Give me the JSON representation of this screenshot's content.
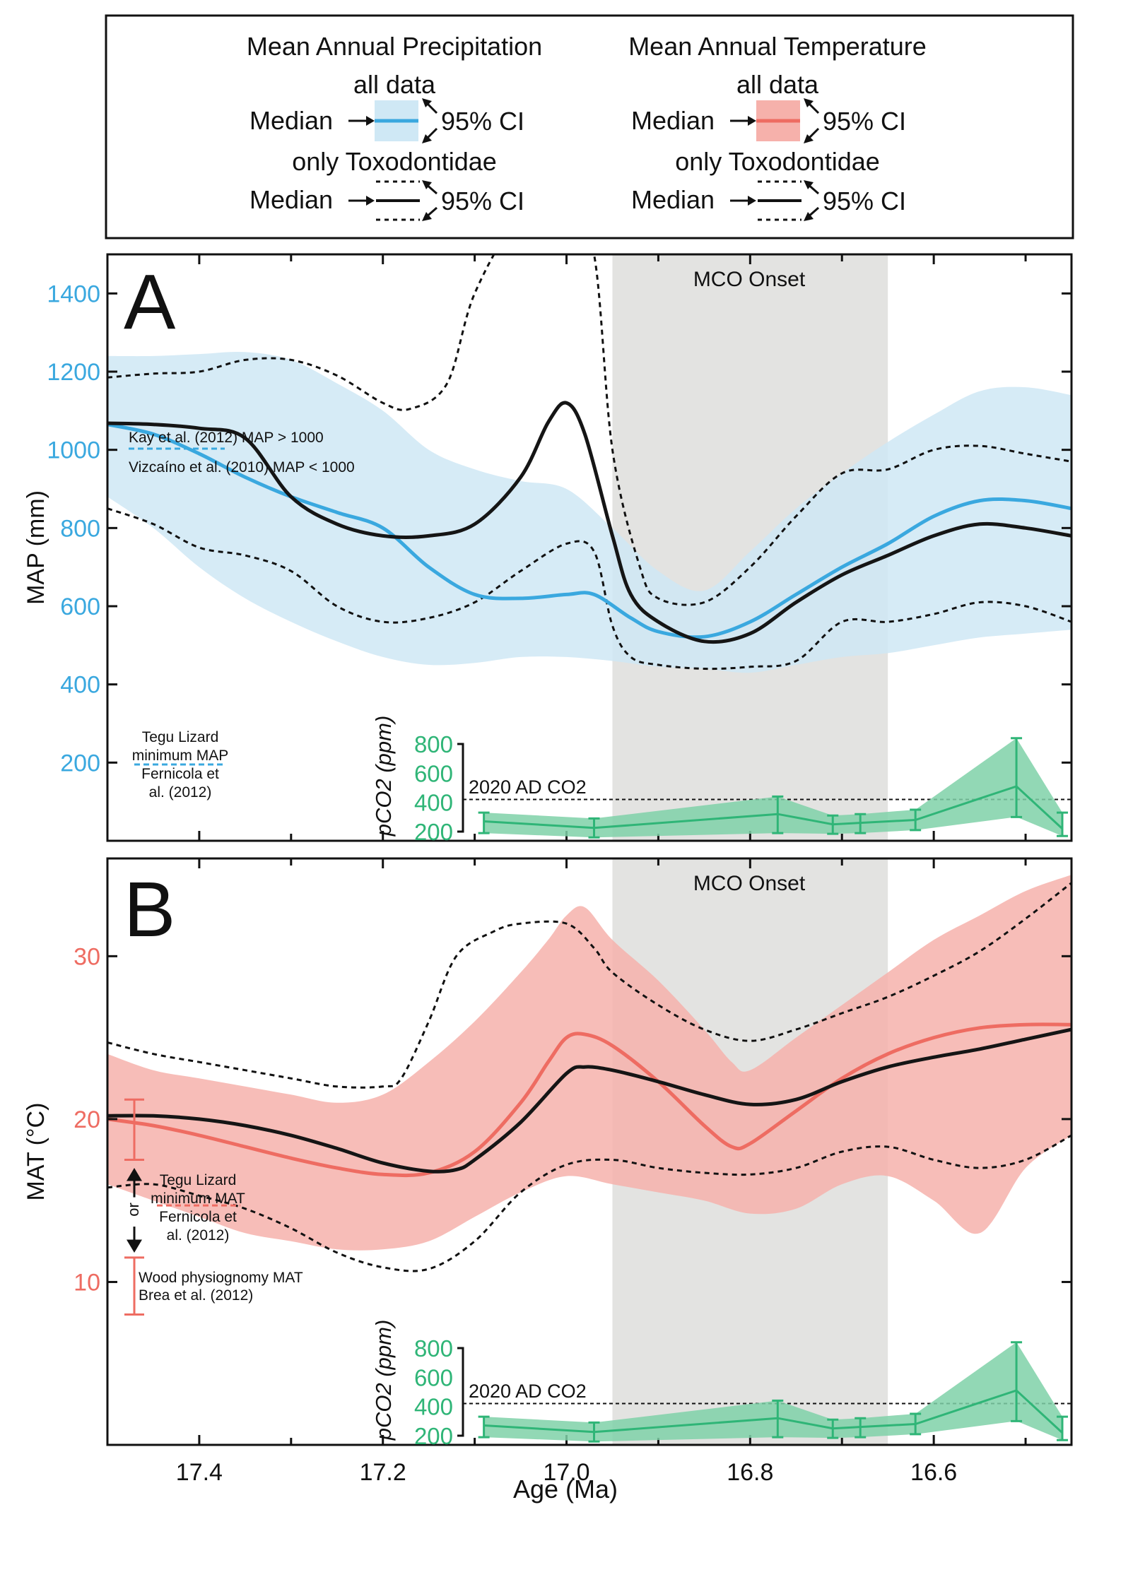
{
  "legend": {
    "map_title": "Mean Annual Precipitation",
    "mat_title": "Mean Annual Temperature",
    "all_data": "all data",
    "only_toxo": "only Toxodontidae",
    "median": "Median",
    "ci": "95% CI"
  },
  "colors": {
    "map": "#3aa8df",
    "map_band": "#cfe8f5",
    "mat": "#ee6c62",
    "mat_band": "#f6b1ab",
    "co2": "#2fb577",
    "co2_band": "#7fd1a8",
    "mco": "#e3e3e1"
  },
  "chart_data": [
    {
      "type": "line",
      "panel_label": "A",
      "ylabel": "MAP (mm)",
      "xlim": [
        17.5,
        16.45
      ],
      "ylim": [
        0,
        1500
      ],
      "y_ticks": [
        200,
        400,
        600,
        800,
        1000,
        1200,
        1400
      ],
      "shaded_region": {
        "label": "MCO Onset",
        "from": 16.95,
        "to": 16.65
      },
      "series": [
        {
          "role": "all data median",
          "x": [
            17.5,
            17.45,
            17.4,
            17.35,
            17.3,
            17.25,
            17.2,
            17.15,
            17.1,
            17.05,
            17.0,
            16.97,
            16.93,
            16.9,
            16.85,
            16.8,
            16.75,
            16.7,
            16.65,
            16.6,
            16.55,
            16.5,
            16.45
          ],
          "y": [
            1065,
            1040,
            990,
            930,
            880,
            840,
            800,
            700,
            630,
            620,
            630,
            630,
            570,
            535,
            522,
            560,
            630,
            700,
            760,
            830,
            870,
            870,
            850
          ]
        },
        {
          "role": "all data 95% CI upper",
          "x": [
            17.5,
            17.45,
            17.4,
            17.35,
            17.3,
            17.25,
            17.2,
            17.15,
            17.1,
            17.05,
            17.0,
            16.95,
            16.9,
            16.85,
            16.8,
            16.75,
            16.7,
            16.65,
            16.6,
            16.55,
            16.5,
            16.45
          ],
          "y": [
            1240,
            1240,
            1245,
            1250,
            1230,
            1170,
            1100,
            1000,
            950,
            920,
            900,
            800,
            690,
            640,
            740,
            850,
            940,
            1020,
            1090,
            1150,
            1160,
            1140
          ]
        },
        {
          "role": "all data 95% CI lower",
          "x": [
            17.5,
            17.45,
            17.4,
            17.35,
            17.3,
            17.25,
            17.2,
            17.15,
            17.1,
            17.05,
            17.0,
            16.95,
            16.9,
            16.85,
            16.8,
            16.75,
            16.7,
            16.65,
            16.6,
            16.55,
            16.5,
            16.45
          ],
          "y": [
            880,
            800,
            700,
            620,
            560,
            510,
            470,
            450,
            455,
            470,
            470,
            460,
            445,
            440,
            430,
            450,
            470,
            480,
            500,
            520,
            530,
            540
          ]
        },
        {
          "role": "Toxodontidae median",
          "x": [
            17.5,
            17.45,
            17.4,
            17.35,
            17.3,
            17.25,
            17.2,
            17.15,
            17.1,
            17.05,
            17.02,
            17.0,
            16.98,
            16.95,
            16.93,
            16.9,
            16.85,
            16.8,
            16.75,
            16.7,
            16.65,
            16.6,
            16.55,
            16.5,
            16.45
          ],
          "y": [
            1068,
            1065,
            1055,
            1030,
            880,
            810,
            780,
            780,
            810,
            930,
            1070,
            1120,
            1040,
            780,
            630,
            560,
            510,
            530,
            610,
            680,
            730,
            780,
            810,
            800,
            780
          ]
        },
        {
          "role": "Toxodontidae 95% CI upper",
          "x": [
            17.5,
            17.45,
            17.4,
            17.35,
            17.3,
            17.25,
            17.2,
            17.17,
            17.13,
            17.1,
            17.05,
            17.0,
            16.97,
            16.95,
            16.92,
            16.9,
            16.85,
            16.8,
            16.75,
            16.7,
            16.65,
            16.6,
            16.55,
            16.5,
            16.45
          ],
          "y": [
            1185,
            1195,
            1200,
            1230,
            1230,
            1190,
            1120,
            1105,
            1170,
            1400,
            1600,
            1650,
            1500,
            1000,
            700,
            620,
            610,
            700,
            830,
            940,
            950,
            1000,
            1010,
            990,
            970
          ]
        },
        {
          "role": "Toxodontidae 95% CI lower",
          "x": [
            17.5,
            17.45,
            17.4,
            17.35,
            17.3,
            17.25,
            17.2,
            17.15,
            17.1,
            17.05,
            17.0,
            16.97,
            16.95,
            16.93,
            16.9,
            16.85,
            16.8,
            16.75,
            16.7,
            16.65,
            16.6,
            16.55,
            16.5,
            16.45
          ],
          "y": [
            850,
            810,
            750,
            730,
            690,
            600,
            560,
            570,
            610,
            690,
            760,
            740,
            550,
            470,
            450,
            440,
            445,
            460,
            560,
            560,
            580,
            610,
            600,
            560
          ]
        }
      ],
      "annotations": [
        {
          "value": 1000,
          "text_top": "Kay et al. (2012) MAP > 1000",
          "text_bottom": "Vizcaíno  et al. (2010) MAP < 1000"
        },
        {
          "value": 200,
          "text_lines": [
            "Tegu Lizard",
            "minimum MAP",
            "Fernicola et",
            "al. (2012)"
          ]
        }
      ],
      "co2_inset": {
        "ylabel": "pCO2 (ppm)",
        "y_ticks": [
          200,
          400,
          600,
          800
        ],
        "reference": {
          "value": 420,
          "label": "2020 AD CO2"
        },
        "x": [
          17.09,
          16.97,
          16.77,
          16.71,
          16.68,
          16.62,
          16.51,
          16.46
        ],
        "median": [
          270,
          225,
          320,
          250,
          260,
          280,
          510,
          220
        ],
        "ci_upper": [
          330,
          290,
          440,
          310,
          320,
          350,
          840,
          330
        ],
        "ci_lower": [
          190,
          160,
          190,
          185,
          190,
          210,
          300,
          170
        ]
      }
    },
    {
      "type": "line",
      "panel_label": "B",
      "ylabel": "MAT (°C)",
      "xlabel": "Age (Ma)",
      "xlim": [
        17.5,
        16.45
      ],
      "ylim": [
        0,
        36
      ],
      "x_ticks": [
        17.4,
        17.2,
        17.0,
        16.8,
        16.6
      ],
      "y_ticks": [
        10,
        20,
        30
      ],
      "shaded_region": {
        "label": "MCO Onset",
        "from": 16.95,
        "to": 16.65
      },
      "series": [
        {
          "role": "all data median",
          "x": [
            17.5,
            17.45,
            17.4,
            17.35,
            17.3,
            17.25,
            17.2,
            17.15,
            17.1,
            17.05,
            17.02,
            17.0,
            16.98,
            16.95,
            16.9,
            16.85,
            16.82,
            16.8,
            16.75,
            16.7,
            16.65,
            16.6,
            16.55,
            16.5,
            16.45
          ],
          "y": [
            20.0,
            19.6,
            19.0,
            18.3,
            17.6,
            17.0,
            16.6,
            16.7,
            18.0,
            21.0,
            23.5,
            25.0,
            25.2,
            24.5,
            22.3,
            19.6,
            18.3,
            18.5,
            20.5,
            22.5,
            24.0,
            25.0,
            25.6,
            25.8,
            25.8
          ]
        },
        {
          "role": "all data 95% CI upper",
          "x": [
            17.5,
            17.45,
            17.4,
            17.35,
            17.3,
            17.25,
            17.2,
            17.15,
            17.1,
            17.05,
            17.02,
            17.0,
            16.98,
            16.95,
            16.9,
            16.85,
            16.82,
            16.8,
            16.75,
            16.7,
            16.65,
            16.6,
            16.55,
            16.5,
            16.45
          ],
          "y": [
            24.0,
            23.0,
            22.5,
            22.0,
            21.5,
            21.0,
            21.5,
            23.5,
            26.0,
            29.0,
            31.0,
            32.5,
            33.0,
            31.0,
            28.5,
            25.5,
            23.5,
            23.0,
            25.0,
            27.0,
            29.0,
            31.0,
            32.5,
            34.0,
            35.0
          ]
        },
        {
          "role": "all data 95% CI lower",
          "x": [
            17.5,
            17.45,
            17.4,
            17.35,
            17.3,
            17.25,
            17.2,
            17.15,
            17.1,
            17.05,
            17.0,
            16.95,
            16.9,
            16.85,
            16.8,
            16.75,
            16.7,
            16.65,
            16.6,
            16.55,
            16.5,
            16.45
          ],
          "y": [
            16.0,
            15.0,
            14.0,
            13.0,
            12.5,
            12.0,
            12.0,
            12.5,
            14.0,
            15.5,
            16.5,
            16.0,
            15.5,
            15.0,
            14.2,
            14.5,
            16.0,
            16.5,
            15.0,
            13.0,
            17.0,
            19.0
          ]
        },
        {
          "role": "Toxodontidae median",
          "x": [
            17.5,
            17.45,
            17.4,
            17.35,
            17.3,
            17.25,
            17.2,
            17.15,
            17.12,
            17.1,
            17.05,
            17.0,
            16.98,
            16.95,
            16.9,
            16.85,
            16.8,
            16.75,
            16.7,
            16.65,
            16.6,
            16.55,
            16.5,
            16.45
          ],
          "y": [
            20.2,
            20.2,
            20.0,
            19.6,
            19.0,
            18.2,
            17.3,
            16.8,
            16.9,
            17.5,
            19.8,
            22.8,
            23.2,
            23.0,
            22.3,
            21.5,
            20.9,
            21.2,
            22.3,
            23.2,
            23.8,
            24.3,
            24.9,
            25.5
          ]
        },
        {
          "role": "Toxodontidae 95% CI upper",
          "x": [
            17.5,
            17.45,
            17.4,
            17.35,
            17.3,
            17.25,
            17.2,
            17.18,
            17.15,
            17.12,
            17.08,
            17.05,
            17.0,
            16.97,
            16.95,
            16.9,
            16.85,
            16.8,
            16.75,
            16.7,
            16.65,
            16.6,
            16.55,
            16.5,
            16.45
          ],
          "y": [
            24.7,
            24.0,
            23.5,
            23.0,
            22.5,
            22.0,
            22.0,
            22.5,
            26.0,
            30.0,
            31.5,
            32.0,
            32.0,
            30.5,
            29.0,
            27.0,
            25.5,
            24.8,
            25.5,
            26.5,
            27.5,
            28.8,
            30.3,
            32.3,
            34.5
          ]
        },
        {
          "role": "Toxodontidae 95% CI lower",
          "x": [
            17.5,
            17.45,
            17.4,
            17.35,
            17.3,
            17.25,
            17.2,
            17.15,
            17.1,
            17.05,
            17.0,
            16.95,
            16.9,
            16.85,
            16.8,
            16.75,
            16.7,
            16.65,
            16.6,
            16.55,
            16.5,
            16.45
          ],
          "y": [
            15.8,
            16.0,
            15.3,
            14.5,
            13.3,
            11.8,
            10.9,
            10.8,
            12.5,
            15.5,
            17.2,
            17.5,
            17.0,
            16.7,
            16.6,
            17.0,
            18.0,
            18.3,
            17.5,
            17.0,
            17.5,
            19.0
          ]
        }
      ],
      "annotations": [
        {
          "value": 14.7,
          "text_lines": [
            "Tegu Lizard",
            "minimum MAT",
            "Fernicola et",
            "al. (2012)"
          ],
          "arrow_text": "or"
        },
        {
          "range": [
            8.0,
            11.5
          ],
          "range_upper": [
            17.5,
            21.2
          ],
          "text_lines": [
            "Wood physiognomy MAT",
            "Brea et al. (2012)"
          ]
        }
      ],
      "co2_inset": {
        "ylabel": "pCO2 (ppm)",
        "y_ticks": [
          200,
          400,
          600,
          800
        ],
        "reference": {
          "value": 420,
          "label": "2020 AD CO2"
        },
        "x": [
          17.09,
          16.97,
          16.77,
          16.71,
          16.68,
          16.62,
          16.51,
          16.46
        ],
        "median": [
          270,
          225,
          320,
          250,
          260,
          280,
          510,
          220
        ],
        "ci_upper": [
          330,
          290,
          440,
          310,
          320,
          350,
          840,
          330
        ],
        "ci_lower": [
          190,
          160,
          190,
          185,
          190,
          210,
          300,
          170
        ]
      }
    }
  ]
}
